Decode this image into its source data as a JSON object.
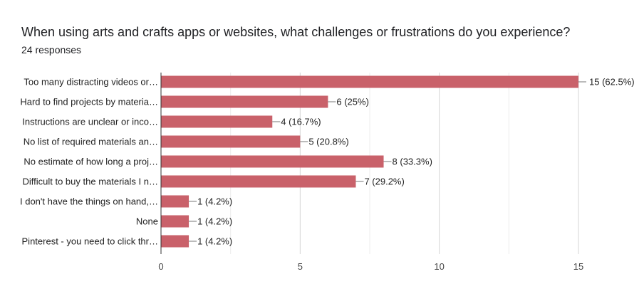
{
  "header": {
    "title": "When using arts and crafts apps or websites, what challenges or frustrations do you experience?",
    "responses": "24 responses"
  },
  "chart_data": {
    "type": "bar",
    "orientation": "horizontal",
    "categories": [
      "Too many distracting videos or…",
      "Hard to find projects by materia…",
      "Instructions are unclear or inco…",
      "No list of required materials an…",
      "No estimate of how long a proj…",
      "Difficult to buy the materials I n…",
      "I don't have the things on hand,…",
      "None",
      "Pinterest - you need to click thr…"
    ],
    "values": [
      15,
      6,
      4,
      5,
      8,
      7,
      1,
      1,
      1
    ],
    "data_labels": [
      "15 (62.5%)",
      "6 (25%)",
      "4 (16.7%)",
      "5 (20.8%)",
      "8 (33.3%)",
      "7 (29.2%)",
      "1 (4.2%)",
      "1 (4.2%)",
      "1 (4.2%)"
    ],
    "xticks": [
      "0",
      "5",
      "10",
      "15"
    ],
    "xlim": [
      0,
      15
    ],
    "grid": true,
    "bar_color": "#c9616a"
  }
}
